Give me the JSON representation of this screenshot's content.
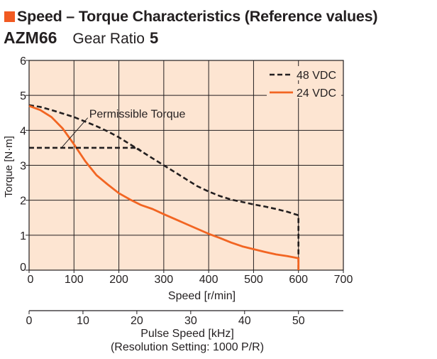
{
  "header": {
    "title": "Speed – Torque Characteristics (Reference values)",
    "model": "AZM66",
    "gear_ratio_label": "Gear Ratio",
    "gear_ratio_value": "5"
  },
  "colors": {
    "title_square": "#f15a22",
    "plot_background": "#fde5d2",
    "series_24vdc": "#f26522",
    "series_48vdc": "#231f20",
    "grid": "#231f20"
  },
  "chart_data": {
    "type": "line",
    "title": "",
    "xlabel": "Speed [r/min]",
    "ylabel": "Torque [N·m]",
    "xlim": [
      0,
      700
    ],
    "ylim": [
      0,
      6
    ],
    "x_ticks": [
      0,
      100,
      200,
      300,
      400,
      500,
      600,
      700
    ],
    "y_ticks": [
      0,
      1,
      2,
      3,
      4,
      5,
      6
    ],
    "grid": true,
    "legend_position": "top-right",
    "secondary_x_axis": {
      "label_line1": "Pulse Speed [kHz]",
      "label_line2": "(Resolution Setting: 1000 P/R)",
      "ticks": [
        0,
        10,
        20,
        30,
        40,
        50
      ],
      "kHz_per_rpm": 0.08333
    },
    "annotation": {
      "text": "Permissible Torque",
      "arrow_from": [
        137,
        4.4
      ],
      "arrow_to": [
        72,
        3.5
      ]
    },
    "series": [
      {
        "name": "48 VDC",
        "style": "dashed",
        "color": "#231f20",
        "x": [
          0,
          25,
          50,
          75,
          100,
          125,
          150,
          175,
          200,
          225,
          250,
          275,
          300,
          325,
          350,
          375,
          400,
          425,
          450,
          475,
          500,
          525,
          550,
          575,
          600,
          600
        ],
        "y": [
          4.72,
          4.67,
          4.58,
          4.48,
          4.38,
          4.25,
          4.12,
          3.97,
          3.8,
          3.6,
          3.4,
          3.2,
          3.0,
          2.8,
          2.6,
          2.4,
          2.25,
          2.12,
          2.02,
          1.95,
          1.88,
          1.82,
          1.75,
          1.67,
          1.57,
          0
        ]
      },
      {
        "name": "24 VDC",
        "style": "solid",
        "color": "#f26522",
        "x": [
          0,
          25,
          50,
          75,
          100,
          125,
          150,
          175,
          200,
          225,
          250,
          275,
          300,
          325,
          350,
          375,
          400,
          425,
          450,
          475,
          500,
          525,
          550,
          575,
          600,
          600
        ],
        "y": [
          4.7,
          4.58,
          4.38,
          4.05,
          3.6,
          3.12,
          2.72,
          2.45,
          2.2,
          2.02,
          1.86,
          1.75,
          1.6,
          1.46,
          1.32,
          1.18,
          1.04,
          0.92,
          0.79,
          0.68,
          0.6,
          0.52,
          0.45,
          0.4,
          0.34,
          0
        ]
      },
      {
        "name": "Permissible Torque",
        "style": "dashed",
        "color": "#231f20",
        "x": [
          0,
          240,
          250
        ],
        "y": [
          3.5,
          3.5,
          3.4
        ]
      }
    ]
  }
}
